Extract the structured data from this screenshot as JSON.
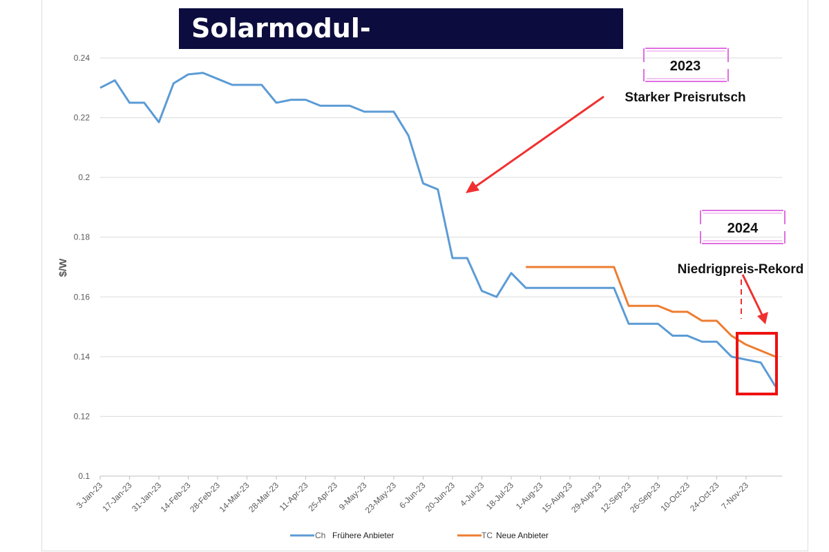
{
  "title": "Solarmodul-Preisentwicklung",
  "annotations": {
    "year_2023": "2023",
    "year_2024": "2024",
    "drop": "Starker Preisrutsch",
    "record": "Niedrigpreis-Rekord"
  },
  "chart_data": {
    "type": "line",
    "ylabel": "$/W",
    "ylim": [
      0.1,
      0.24
    ],
    "yticks": [
      "0.1",
      "0.12",
      "0.14",
      "0.16",
      "0.18",
      "0.2",
      "0.22",
      "0.24"
    ],
    "xtick_labels": [
      "3-Jan-23",
      "17-Jan-23",
      "31-Jan-23",
      "14-Feb-23",
      "28-Feb-23",
      "14-Mar-23",
      "28-Mar-23",
      "11-Apr-23",
      "25-Apr-23",
      "9-May-23",
      "23-May-23",
      "6-Jun-23",
      "20-Jun-23",
      "4-Jul-23",
      "18-Jul-23",
      "1-Aug-23",
      "15-Aug-23",
      "29-Aug-23",
      "12-Sep-23",
      "26-Sep-23",
      "10-Oct-23",
      "24-Oct-23",
      "7-Nov-23"
    ],
    "grid": true,
    "legend_position": "bottom",
    "series": [
      {
        "name": "Frühere Anbieter",
        "legend_prefix": "Ch",
        "color": "#5b9bd5",
        "values": [
          0.23,
          0.2325,
          0.225,
          0.225,
          0.2185,
          0.2315,
          0.2345,
          0.235,
          0.233,
          0.231,
          0.231,
          0.231,
          0.225,
          0.226,
          0.226,
          0.224,
          0.224,
          0.224,
          0.222,
          0.222,
          0.222,
          0.214,
          0.198,
          0.196,
          0.173,
          0.173,
          0.162,
          0.16,
          0.168,
          0.163,
          0.163,
          0.163,
          0.163,
          0.163,
          0.163,
          0.163,
          0.151,
          0.151,
          0.151,
          0.147,
          0.147,
          0.145,
          0.145,
          0.14,
          0.139,
          0.138,
          0.13
        ]
      },
      {
        "name": "Neue Anbieter",
        "legend_prefix": "TC",
        "color": "#ed7d31",
        "start_index": 29,
        "values": [
          0.17,
          0.17,
          0.17,
          0.17,
          0.17,
          0.17,
          0.17,
          0.157,
          0.157,
          0.157,
          0.155,
          0.155,
          0.152,
          0.152,
          0.147,
          0.144,
          0.142,
          0.14
        ]
      }
    ]
  }
}
